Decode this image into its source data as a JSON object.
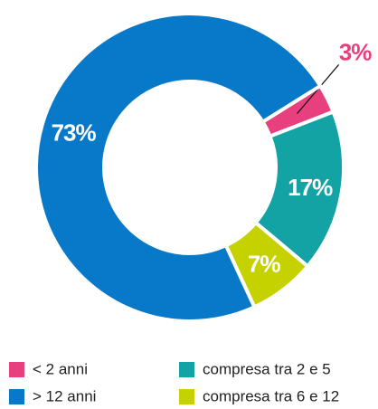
{
  "chart_data": {
    "type": "pie",
    "categories": [
      "< 2 anni",
      "compresa tra 2 e 5",
      "compresa tra 6 e 12",
      "> 12 anni"
    ],
    "values": [
      3,
      17,
      7,
      73
    ],
    "value_labels": [
      "3%",
      "17%",
      "7%",
      "73%"
    ],
    "colors": [
      "#e8407f",
      "#13a3a5",
      "#c6d200",
      "#0878c8"
    ],
    "legend": "bottom"
  }
}
